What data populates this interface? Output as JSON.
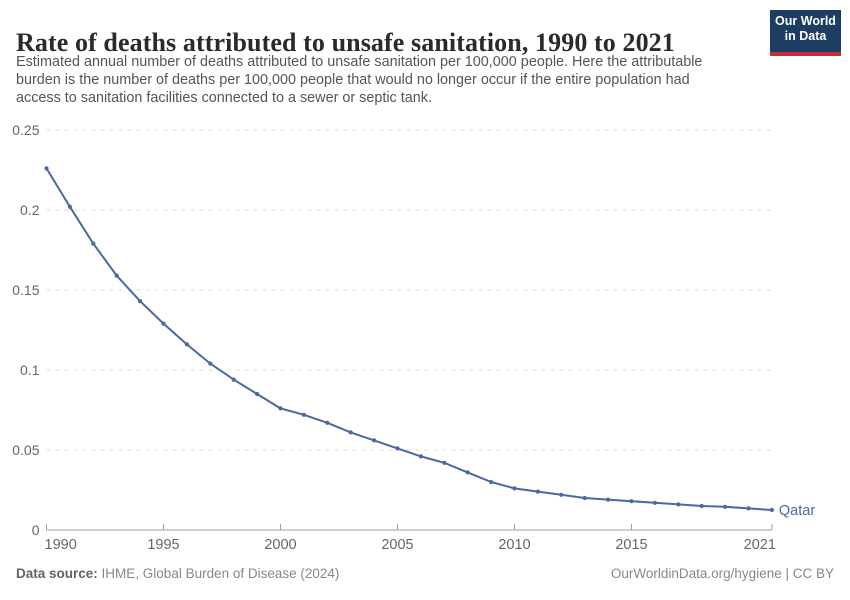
{
  "header": {
    "title": "Rate of deaths attributed to unsafe sanitation, 1990 to 2021",
    "subtitle_lines": [
      "Estimated annual number of deaths attributed to unsafe sanitation per 100,000 people. Here the attributable",
      "burden is the number of deaths per 100,000 people that would no longer occur if the entire population had",
      "access to sanitation facilities connected to a sewer or septic tank."
    ],
    "logo": {
      "line1": "Our World",
      "line2": "in Data",
      "bg_color": "#1d3d63",
      "accent_color": "#c82d3c"
    }
  },
  "chart_data": {
    "type": "line",
    "title": "Rate of deaths attributed to unsafe sanitation, 1990 to 2021",
    "xlabel": "",
    "ylabel": "",
    "xlim": [
      1990,
      2021
    ],
    "ylim": [
      0,
      0.25
    ],
    "grid": "horizontal-dashed",
    "legend": "end-of-line-label",
    "x": [
      1990,
      1991,
      1992,
      1993,
      1994,
      1995,
      1996,
      1997,
      1998,
      1999,
      2000,
      2001,
      2002,
      2003,
      2004,
      2005,
      2006,
      2007,
      2008,
      2009,
      2010,
      2011,
      2012,
      2013,
      2014,
      2015,
      2016,
      2017,
      2018,
      2019,
      2020,
      2021
    ],
    "series": [
      {
        "name": "Qatar",
        "color": "#4a69a0",
        "values": [
          0.226,
          0.202,
          0.179,
          0.159,
          0.143,
          0.129,
          0.116,
          0.104,
          0.094,
          0.085,
          0.076,
          0.072,
          0.067,
          0.061,
          0.056,
          0.051,
          0.046,
          0.042,
          0.036,
          0.03,
          0.026,
          0.024,
          0.022,
          0.02,
          0.019,
          0.018,
          0.017,
          0.016,
          0.015,
          0.0145,
          0.0135,
          0.0125
        ]
      }
    ],
    "xticks": [
      {
        "v": 1990,
        "label": "1990"
      },
      {
        "v": 1995,
        "label": "1995"
      },
      {
        "v": 2000,
        "label": "2000"
      },
      {
        "v": 2005,
        "label": "2005"
      },
      {
        "v": 2010,
        "label": "2010"
      },
      {
        "v": 2015,
        "label": "2015"
      },
      {
        "v": 2021,
        "label": "2021"
      }
    ],
    "yticks": [
      {
        "v": 0,
        "label": "0"
      },
      {
        "v": 0.05,
        "label": "0.05"
      },
      {
        "v": 0.1,
        "label": "0.1"
      },
      {
        "v": 0.15,
        "label": "0.15"
      },
      {
        "v": 0.2,
        "label": "0.2"
      },
      {
        "v": 0.25,
        "label": "0.25"
      }
    ]
  },
  "footer": {
    "source_label": "Data source:",
    "source_value": "IHME, Global Burden of Disease (2024)",
    "url": "OurWorldinData.org/hygiene",
    "separator": " | ",
    "license": "CC BY"
  },
  "colors": {
    "line": "#4a69a0",
    "grid": "#dcdcdc",
    "axis": "#a0a0a0",
    "tick_label": "#666666",
    "title": "#2a2a2a",
    "subtitle": "#555555"
  }
}
